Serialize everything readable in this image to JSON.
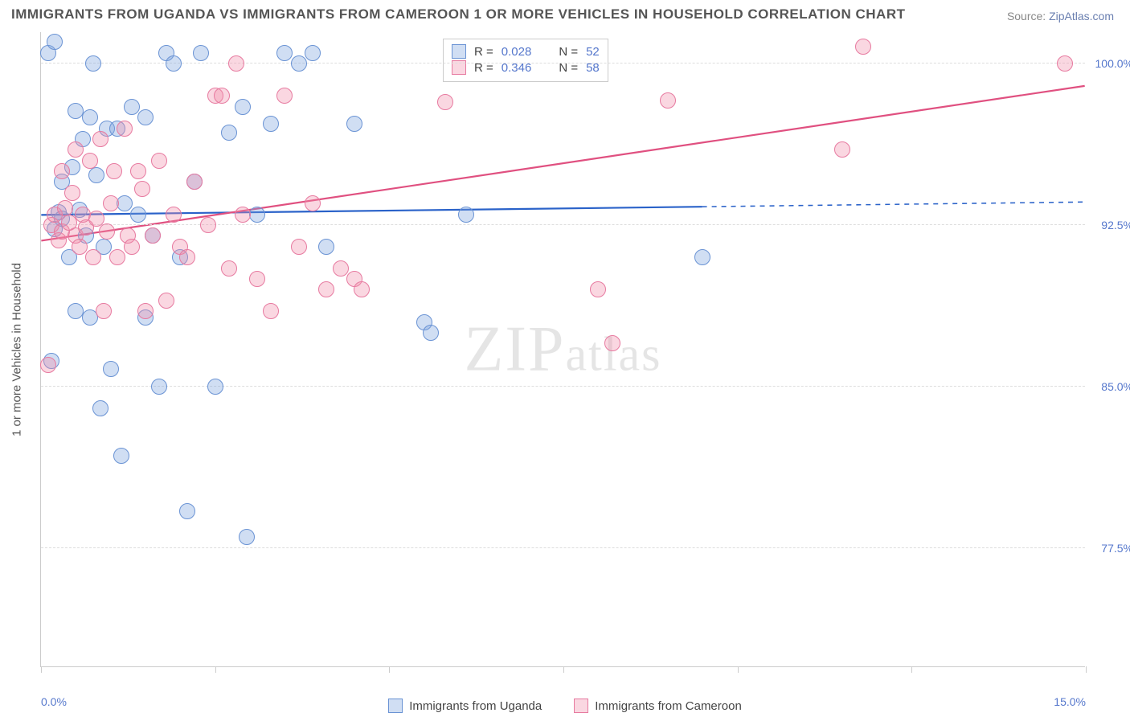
{
  "title": "IMMIGRANTS FROM UGANDA VS IMMIGRANTS FROM CAMEROON 1 OR MORE VEHICLES IN HOUSEHOLD CORRELATION CHART",
  "source_label": "Source:",
  "source_name": "ZipAtlas.com",
  "watermark": "ZIPatlas",
  "chart": {
    "type": "scatter",
    "x_axis": {
      "min": 0.0,
      "max": 15.0,
      "ticks": [
        0.0,
        2.5,
        5.0,
        7.5,
        10.0,
        12.5,
        15.0
      ],
      "tick_labels": [
        "0.0%",
        "",
        "",
        "",
        "",
        "",
        "15.0%"
      ]
    },
    "y_axis": {
      "min": 72.0,
      "max": 101.5,
      "ticks": [
        77.5,
        85.0,
        92.5,
        100.0
      ],
      "tick_labels": [
        "77.5%",
        "85.0%",
        "92.5%",
        "100.0%"
      ],
      "title": "1 or more Vehicles in Household"
    },
    "background_color": "#ffffff",
    "grid_color": "#dddddd",
    "marker_radius": 10,
    "marker_border_width": 1,
    "series": [
      {
        "name": "Immigrants from Uganda",
        "fill_color": "rgba(120,160,220,0.35)",
        "border_color": "#6a93d4",
        "R": "0.028",
        "N": "52",
        "trend": {
          "color": "#2a62c9",
          "width": 2.2,
          "y_start": 93.0,
          "y_end": 93.6,
          "x_solid_end": 9.5,
          "dash_after": true
        },
        "points": [
          [
            0.1,
            100.5
          ],
          [
            0.2,
            101.0
          ],
          [
            0.15,
            86.2
          ],
          [
            0.2,
            92.3
          ],
          [
            0.25,
            93.1
          ],
          [
            0.3,
            94.5
          ],
          [
            0.3,
            92.8
          ],
          [
            0.4,
            91.0
          ],
          [
            0.45,
            95.2
          ],
          [
            0.5,
            97.8
          ],
          [
            0.5,
            88.5
          ],
          [
            0.55,
            93.2
          ],
          [
            0.6,
            96.5
          ],
          [
            0.65,
            92.0
          ],
          [
            0.7,
            97.5
          ],
          [
            0.7,
            88.2
          ],
          [
            0.75,
            100.0
          ],
          [
            0.8,
            94.8
          ],
          [
            0.85,
            84.0
          ],
          [
            0.9,
            91.5
          ],
          [
            0.95,
            97.0
          ],
          [
            1.0,
            85.8
          ],
          [
            1.1,
            97.0
          ],
          [
            1.15,
            81.8
          ],
          [
            1.2,
            93.5
          ],
          [
            1.3,
            98.0
          ],
          [
            1.4,
            93.0
          ],
          [
            1.5,
            88.2
          ],
          [
            1.5,
            97.5
          ],
          [
            1.6,
            92.0
          ],
          [
            1.7,
            85.0
          ],
          [
            1.8,
            100.5
          ],
          [
            1.9,
            100.0
          ],
          [
            2.0,
            91.0
          ],
          [
            2.1,
            79.2
          ],
          [
            2.2,
            94.5
          ],
          [
            2.3,
            100.5
          ],
          [
            2.5,
            85.0
          ],
          [
            2.7,
            96.8
          ],
          [
            2.9,
            98.0
          ],
          [
            2.95,
            78.0
          ],
          [
            3.1,
            93.0
          ],
          [
            3.3,
            97.2
          ],
          [
            3.5,
            100.5
          ],
          [
            3.7,
            100.0
          ],
          [
            3.9,
            100.5
          ],
          [
            4.1,
            91.5
          ],
          [
            4.5,
            97.2
          ],
          [
            5.5,
            88.0
          ],
          [
            5.6,
            87.5
          ],
          [
            6.1,
            93.0
          ],
          [
            9.5,
            91.0
          ]
        ]
      },
      {
        "name": "Immigrants from Cameroon",
        "fill_color": "rgba(240,140,170,0.35)",
        "border_color": "#e77aa0",
        "R": "0.346",
        "N": "58",
        "trend": {
          "color": "#e05080",
          "width": 2.2,
          "y_start": 91.8,
          "y_end": 99.0,
          "x_solid_end": 15.0,
          "dash_after": false
        },
        "points": [
          [
            0.1,
            86.0
          ],
          [
            0.15,
            92.5
          ],
          [
            0.2,
            93.0
          ],
          [
            0.25,
            91.8
          ],
          [
            0.3,
            92.2
          ],
          [
            0.3,
            95.0
          ],
          [
            0.35,
            93.3
          ],
          [
            0.4,
            92.6
          ],
          [
            0.45,
            94.0
          ],
          [
            0.5,
            92.0
          ],
          [
            0.5,
            96.0
          ],
          [
            0.55,
            91.5
          ],
          [
            0.6,
            93.0
          ],
          [
            0.65,
            92.4
          ],
          [
            0.7,
            95.5
          ],
          [
            0.75,
            91.0
          ],
          [
            0.8,
            92.8
          ],
          [
            0.85,
            96.5
          ],
          [
            0.9,
            88.5
          ],
          [
            0.95,
            92.2
          ],
          [
            1.0,
            93.5
          ],
          [
            1.05,
            95.0
          ],
          [
            1.1,
            91.0
          ],
          [
            1.2,
            97.0
          ],
          [
            1.25,
            92.0
          ],
          [
            1.3,
            91.5
          ],
          [
            1.4,
            95.0
          ],
          [
            1.45,
            94.2
          ],
          [
            1.5,
            88.5
          ],
          [
            1.6,
            92.0
          ],
          [
            1.7,
            95.5
          ],
          [
            1.8,
            89.0
          ],
          [
            1.9,
            93.0
          ],
          [
            2.0,
            91.5
          ],
          [
            2.1,
            91.0
          ],
          [
            2.2,
            94.5
          ],
          [
            2.4,
            92.5
          ],
          [
            2.5,
            98.5
          ],
          [
            2.6,
            98.5
          ],
          [
            2.7,
            90.5
          ],
          [
            2.8,
            100.0
          ],
          [
            2.9,
            93.0
          ],
          [
            3.1,
            90.0
          ],
          [
            3.3,
            88.5
          ],
          [
            3.5,
            98.5
          ],
          [
            3.7,
            91.5
          ],
          [
            3.9,
            93.5
          ],
          [
            4.1,
            89.5
          ],
          [
            4.3,
            90.5
          ],
          [
            4.5,
            90.0
          ],
          [
            4.6,
            89.5
          ],
          [
            5.8,
            98.2
          ],
          [
            8.0,
            89.5
          ],
          [
            8.2,
            87.0
          ],
          [
            9.0,
            98.3
          ],
          [
            11.5,
            96.0
          ],
          [
            11.8,
            100.8
          ],
          [
            14.7,
            100.0
          ]
        ]
      }
    ],
    "corr_legend_labels": {
      "R_label": "R =",
      "N_label": "N ="
    }
  }
}
